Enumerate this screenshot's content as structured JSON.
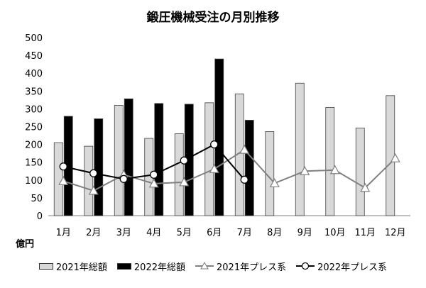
{
  "chart_data": {
    "type": "bar",
    "title": "鍛圧機械受注の月別推移",
    "unit_label": "億円",
    "categories": [
      "1月",
      "2月",
      "3月",
      "4月",
      "5月",
      "6月",
      "7月",
      "8月",
      "9月",
      "10月",
      "11月",
      "12月"
    ],
    "ylim": [
      0,
      500
    ],
    "yticks": [
      0,
      50,
      100,
      150,
      200,
      250,
      300,
      350,
      400,
      450,
      500
    ],
    "grid": false,
    "legend_position": "bottom",
    "series": [
      {
        "name": "2021年総額",
        "kind": "bar",
        "color": "#d9d9d9",
        "values": [
          205,
          195,
          310,
          217,
          230,
          317,
          342,
          236,
          372,
          304,
          246,
          337
        ]
      },
      {
        "name": "2022年総額",
        "kind": "bar",
        "color": "#000000",
        "values": [
          279,
          272,
          328,
          315,
          313,
          440,
          268,
          null,
          null,
          null,
          null,
          null
        ]
      },
      {
        "name": "2021年プレス系",
        "kind": "line",
        "marker": "triangle",
        "color": "#808080",
        "values": [
          97,
          70,
          115,
          90,
          94,
          131,
          185,
          91,
          125,
          128,
          78,
          161
        ]
      },
      {
        "name": "2022年プレス系",
        "kind": "line",
        "marker": "circle",
        "color": "#000000",
        "values": [
          138,
          119,
          103,
          115,
          155,
          200,
          101,
          null,
          null,
          null,
          null,
          null
        ]
      }
    ]
  }
}
